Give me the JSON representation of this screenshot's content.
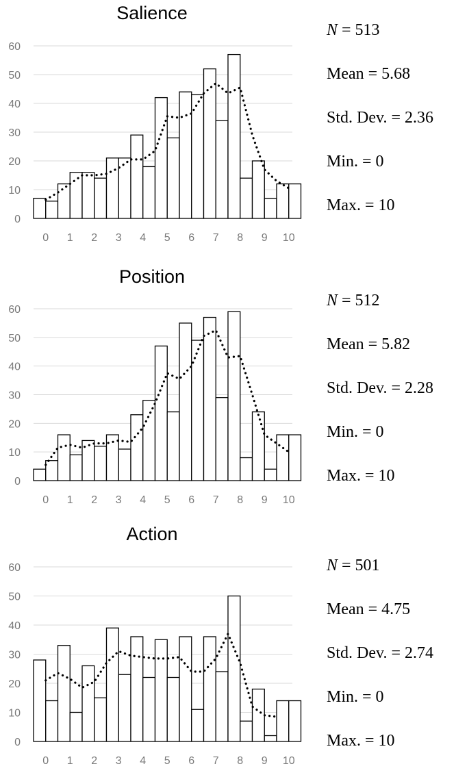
{
  "chart_data": [
    {
      "type": "bar",
      "title": "Salience",
      "categories": [
        "0",
        "1",
        "2",
        "3",
        "4",
        "5",
        "6",
        "7",
        "8",
        "9",
        "10"
      ],
      "ylim": [
        0,
        60
      ],
      "yticks": [
        "0",
        "10",
        "20",
        "30",
        "40",
        "50",
        "60"
      ],
      "grid": true,
      "series": [
        {
          "values": [
            7,
            12,
            16,
            21,
            29,
            42,
            44,
            52,
            57,
            20,
            12
          ]
        },
        {
          "values": [
            6,
            16,
            14,
            21,
            18,
            28,
            43,
            34,
            14,
            7,
            12
          ]
        }
      ],
      "trend": [
        6.5,
        9,
        12,
        15,
        15,
        15.5,
        17.5,
        20.5,
        20.5,
        23.5,
        35.5,
        35,
        36.5,
        43.5,
        47,
        43.5,
        45.5,
        29,
        17,
        13,
        10.5
      ],
      "stats": {
        "n_label": "N",
        "n_value": "= 513",
        "mean": "Mean = 5.68",
        "sd": "Std. Dev. = 2.36",
        "min": "Min. = 0",
        "max": "Max. = 10"
      }
    },
    {
      "type": "bar",
      "title": "Position",
      "categories": [
        "0",
        "1",
        "2",
        "3",
        "4",
        "5",
        "6",
        "7",
        "8",
        "9",
        "10"
      ],
      "ylim": [
        0,
        60
      ],
      "yticks": [
        "0",
        "10",
        "20",
        "30",
        "40",
        "50",
        "60"
      ],
      "grid": true,
      "series": [
        {
          "values": [
            4,
            16,
            14,
            16,
            23,
            47,
            55,
            57,
            59,
            24,
            16
          ]
        },
        {
          "values": [
            7,
            9,
            12,
            11,
            28,
            24,
            49,
            29,
            8,
            4,
            16
          ]
        }
      ],
      "trend": [
        5.5,
        11.5,
        12.5,
        11.5,
        13,
        13,
        14,
        13.5,
        18.5,
        27,
        37.5,
        35.5,
        40,
        50.5,
        52.5,
        43,
        43.5,
        30,
        16,
        13,
        10
      ],
      "stats": {
        "n_label": "N",
        "n_value": "= 512",
        "mean": "Mean = 5.82",
        "sd": "Std. Dev. = 2.28",
        "min": "Min. = 0",
        "max": "Max. = 10"
      }
    },
    {
      "type": "bar",
      "title": "Action",
      "categories": [
        "0",
        "1",
        "2",
        "3",
        "4",
        "5",
        "6",
        "7",
        "8",
        "9",
        "10"
      ],
      "ylim": [
        0,
        60
      ],
      "yticks": [
        "0",
        "10",
        "20",
        "30",
        "40",
        "50",
        "60"
      ],
      "grid": true,
      "series": [
        {
          "values": [
            28,
            33,
            26,
            39,
            36,
            35,
            36,
            36,
            50,
            18,
            14
          ]
        },
        {
          "values": [
            14,
            10,
            15,
            23,
            22,
            22,
            11,
            24,
            7,
            2,
            14
          ]
        }
      ],
      "trend": [
        21,
        23.5,
        21.5,
        18.5,
        20.5,
        27,
        31,
        29.5,
        29,
        28.5,
        28.5,
        29,
        24,
        24,
        28.5,
        37,
        27,
        12,
        9,
        8.5
      ],
      "stats": {
        "n_label": "N",
        "n_value": "= 501",
        "mean": "Mean = 4.75",
        "sd": "Std. Dev. = 2.74",
        "min": "Min. = 0",
        "max": "Max. = 10"
      }
    }
  ]
}
